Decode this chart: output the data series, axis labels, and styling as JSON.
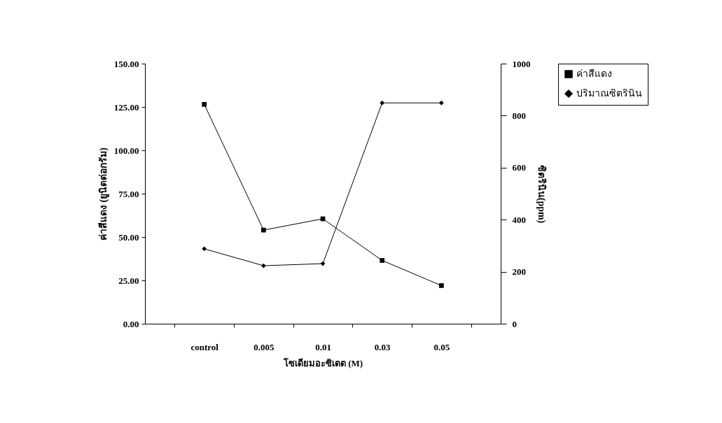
{
  "chart_data": {
    "type": "line",
    "categories": [
      "control",
      "0.005",
      "0.01",
      "0.03",
      "0.05"
    ],
    "xlabel": "โซเดียมอะซิเตต (M)",
    "ylabel": "ค่าสีแดง (ยูนิตต่อกรัม)",
    "y2label": "ซิตรินิน(ppm)",
    "series": [
      {
        "name": "ค่าสีแดง",
        "color": "#000000",
        "marker": "square",
        "values": [
          126.5,
          54,
          60.5,
          36.5,
          22
        ]
      },
      {
        "name": "ปริมาณซิตรินิน",
        "color": "#000000",
        "marker": "diamond",
        "axis": "y2",
        "values": [
          288,
          223,
          231,
          849,
          849
        ]
      }
    ],
    "ylim": [
      0,
      150
    ],
    "yticks": [
      {
        "value": 0,
        "label": "0.00"
      },
      {
        "value": 25,
        "label": "25.00"
      },
      {
        "value": 50,
        "label": "50.00"
      },
      {
        "value": 75,
        "label": "75.00"
      },
      {
        "value": 100,
        "label": "100.00"
      },
      {
        "value": 125,
        "label": "125.00"
      },
      {
        "value": 150,
        "label": "150.00"
      }
    ],
    "y2lim": [
      0,
      1000
    ],
    "y2ticks": [
      0,
      200,
      400,
      600,
      800,
      1000
    ],
    "legend": "right",
    "grid": false
  }
}
